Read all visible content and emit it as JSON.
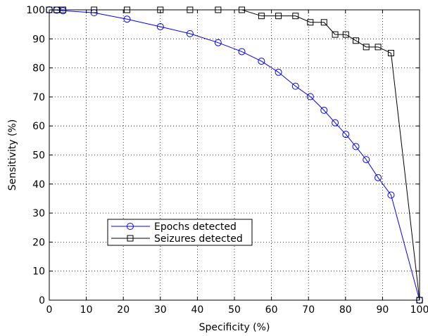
{
  "chart_data": {
    "type": "line",
    "xlabel": "Specificity (%)",
    "ylabel": "Sensitivity (%)",
    "xlim": [
      0,
      100
    ],
    "ylim": [
      0,
      100
    ],
    "xticks": [
      0,
      10,
      20,
      30,
      40,
      50,
      60,
      70,
      80,
      90,
      100
    ],
    "yticks": [
      0,
      10,
      20,
      30,
      40,
      50,
      60,
      70,
      80,
      90,
      100
    ],
    "grid": true,
    "legend_position": "lower-left",
    "series": [
      {
        "name": "Epochs detected",
        "color": "#0000ff",
        "marker": "circle",
        "x": [
          0,
          2,
          3.7,
          12.1,
          21,
          30,
          38,
          45.6,
          52,
          57.3,
          61.9,
          66.5,
          70.5,
          74.2,
          77.2,
          80.1,
          82.8,
          85.6,
          88.8,
          92.3,
          100
        ],
        "y": [
          100,
          99.9,
          99.7,
          99,
          96.8,
          94.2,
          91.8,
          88.7,
          85.6,
          82.3,
          78.5,
          73.7,
          70.1,
          65.4,
          61.1,
          57.1,
          52.9,
          48.4,
          42.2,
          36.2,
          0
        ]
      },
      {
        "name": "Seizures detected",
        "color": "#000000",
        "marker": "square",
        "x": [
          0,
          2,
          3.7,
          12.1,
          21,
          30,
          38,
          45.6,
          52,
          57.3,
          61.9,
          66.5,
          70.5,
          74.2,
          77.2,
          80.1,
          82.8,
          85.6,
          88.8,
          92.3,
          100
        ],
        "y": [
          100,
          100,
          100,
          100,
          100,
          100,
          100,
          100,
          100,
          97.9,
          97.9,
          97.9,
          95.7,
          95.7,
          91.5,
          91.5,
          89.4,
          87.2,
          87.2,
          85.1,
          0
        ]
      }
    ]
  }
}
